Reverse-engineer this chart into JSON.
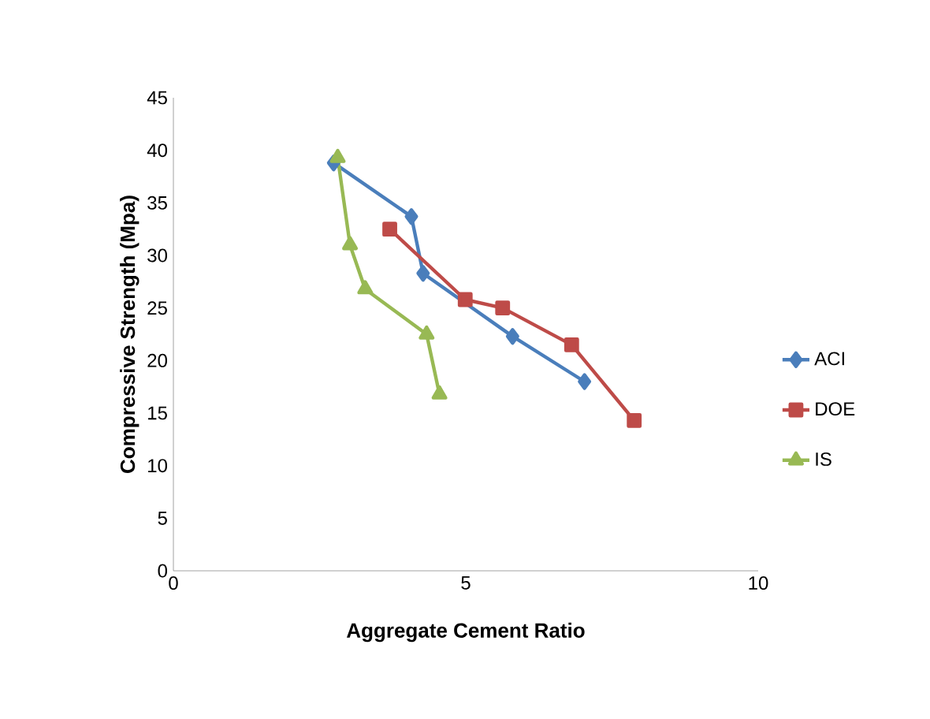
{
  "chart_data": {
    "type": "line",
    "xlabel": "Aggregate Cement Ratio",
    "ylabel": "Compressive Strength (Mpa)",
    "xlim": [
      0,
      10
    ],
    "xticks": [
      0,
      5,
      10
    ],
    "ylim": [
      0,
      45
    ],
    "yticks": [
      0,
      5,
      10,
      15,
      20,
      25,
      30,
      35,
      40,
      45
    ],
    "grid": false,
    "legend": "right",
    "series": [
      {
        "name": "ACI",
        "color": "#4a7ebb",
        "marker": "diamond",
        "x": [
          2.74,
          4.07,
          4.27,
          5.8,
          7.03
        ],
        "values": [
          38.8,
          33.7,
          28.3,
          22.3,
          18.0
        ]
      },
      {
        "name": "DOE",
        "color": "#be4b48",
        "marker": "square",
        "x": [
          3.7,
          4.99,
          5.63,
          6.81,
          7.88
        ],
        "values": [
          32.5,
          25.8,
          25.0,
          21.5,
          14.3
        ]
      },
      {
        "name": "IS",
        "color": "#98b954",
        "marker": "triangle",
        "x": [
          2.81,
          3.02,
          3.28,
          4.33,
          4.55
        ],
        "values": [
          39.3,
          31.0,
          26.8,
          22.5,
          16.8
        ]
      }
    ]
  }
}
